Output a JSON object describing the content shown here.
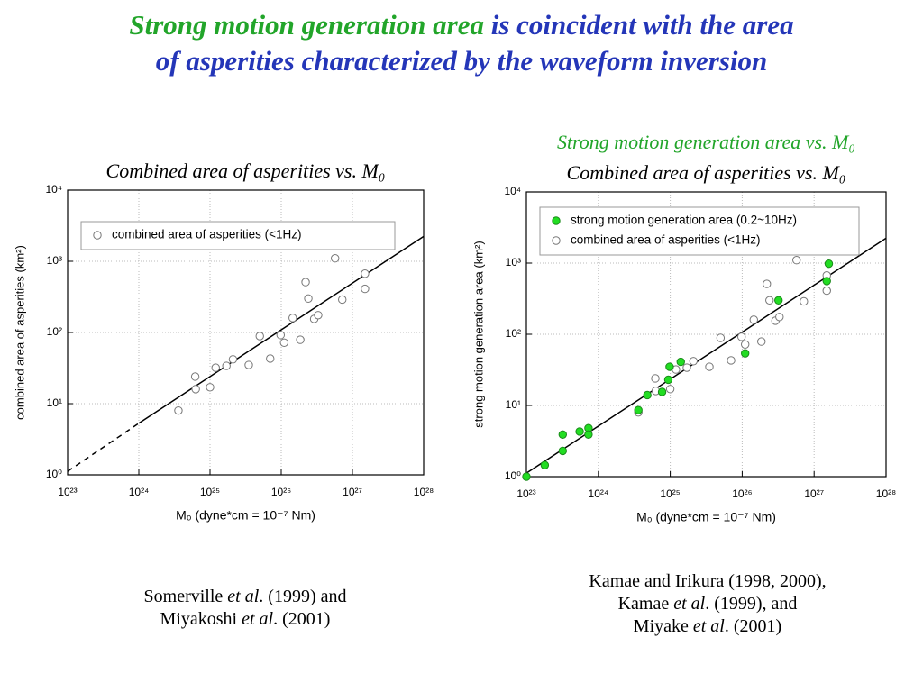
{
  "title": [
    {
      "text": "Strong motion generation area",
      "color": "#22a52a"
    },
    {
      "text": " is coincident with the area",
      "color": "#2436b8"
    },
    {
      "text": "of asperities characterized by the waveform inversion",
      "color": "#2436b8"
    }
  ],
  "captions": [
    [
      [
        {
          "text": "Somerville ",
          "italic": false
        },
        {
          "text": "et al",
          "italic": true
        },
        {
          "text": ". (1999) and",
          "italic": false
        }
      ],
      [
        {
          "text": "Miyakoshi ",
          "italic": false
        },
        {
          "text": "et al",
          "italic": true
        },
        {
          "text": ". (2001)",
          "italic": false
        }
      ]
    ],
    [
      [
        {
          "text": "Kamae and Irikura (1998, 2000),",
          "italic": false
        }
      ],
      [
        {
          "text": "Kamae ",
          "italic": false
        },
        {
          "text": "et al",
          "italic": true
        },
        {
          "text": ". (1999), and",
          "italic": false
        }
      ],
      [
        {
          "text": "Miyake ",
          "italic": false
        },
        {
          "text": "et al",
          "italic": true
        },
        {
          "text": ". (2001)",
          "italic": false
        }
      ]
    ]
  ],
  "chart_data": [
    {
      "type": "scatter",
      "titles": [
        {
          "text": "Combined area of asperities vs. M₀",
          "color": "#000000"
        }
      ],
      "x_label": "M₀ (dyne*cm = 10⁻⁷ Nm)",
      "y_label": "combined area of asperities (km²)",
      "log_x": true,
      "log_y": true,
      "grid": true,
      "xlim": [
        1e+23,
        1e+28
      ],
      "ylim": [
        1,
        10000
      ],
      "xticks": [
        {
          "value": 1e+23,
          "label": "10²³"
        },
        {
          "value": 1e+24,
          "label": "10²⁴"
        },
        {
          "value": 1e+25,
          "label": "10²⁵"
        },
        {
          "value": 1e+26,
          "label": "10²⁶"
        },
        {
          "value": 1e+27,
          "label": "10²⁷"
        },
        {
          "value": 1e+28,
          "label": "10²⁸"
        }
      ],
      "yticks": [
        {
          "value": 1,
          "label": "10⁰"
        },
        {
          "value": 10,
          "label": "10¹"
        },
        {
          "value": 100,
          "label": "10²"
        },
        {
          "value": 1000,
          "label": "10³"
        },
        {
          "value": 10000,
          "label": "10⁴"
        }
      ],
      "series": [
        {
          "name": "combined area of asperities (<1Hz)",
          "color": "#777777",
          "marker": "open",
          "x": [
            3.6e+24,
            6.2e+24,
            6.3e+24,
            1e+25,
            1.2e+25,
            1.7e+25,
            2.1e+25,
            3.5e+25,
            5e+25,
            7e+25,
            9.8e+25,
            1.1e+26,
            1.45e+26,
            1.85e+26,
            2.2e+26,
            2.4e+26,
            2.9e+26,
            3.3e+26,
            5.7e+26,
            7.2e+26,
            1.5e+27,
            1.5e+27
          ],
          "values": [
            8,
            24,
            16,
            17,
            32,
            34,
            42,
            35,
            89,
            43,
            92,
            72,
            160,
            79,
            510,
            300,
            155,
            175,
            1100,
            290,
            670,
            410
          ]
        }
      ],
      "lines": [
        {
          "x": [
            1e+23,
            1e+24
          ],
          "values": [
            1.12,
            5.3
          ],
          "style": "dashed"
        },
        {
          "x": [
            1e+24,
            1e+28
          ],
          "values": [
            5.3,
            2240
          ],
          "style": "solid"
        }
      ]
    },
    {
      "type": "scatter",
      "titles": [
        {
          "text": "Strong motion generation area vs. M₀",
          "color": "#22a52a"
        },
        {
          "text": "Combined area of asperities vs. M₀",
          "color": "#000000"
        }
      ],
      "x_label": "M₀ (dyne*cm = 10⁻⁷ Nm)",
      "y_label": "strong motion generation area (km²)",
      "log_x": true,
      "log_y": true,
      "grid": true,
      "xlim": [
        1e+23,
        1e+28
      ],
      "ylim": [
        1,
        10000
      ],
      "xticks": [
        {
          "value": 1e+23,
          "label": "10²³"
        },
        {
          "value": 1e+24,
          "label": "10²⁴"
        },
        {
          "value": 1e+25,
          "label": "10²⁵"
        },
        {
          "value": 1e+26,
          "label": "10²⁶"
        },
        {
          "value": 1e+27,
          "label": "10²⁷"
        },
        {
          "value": 1e+28,
          "label": "10²⁸"
        }
      ],
      "yticks": [
        {
          "value": 1,
          "label": "10⁰"
        },
        {
          "value": 10,
          "label": "10¹"
        },
        {
          "value": 100,
          "label": "10²"
        },
        {
          "value": 1000,
          "label": "10³"
        },
        {
          "value": 10000,
          "label": "10⁴"
        }
      ],
      "series": [
        {
          "name": "strong motion generation area (0.2~10Hz)",
          "color": "#22dd22",
          "marker": "filled",
          "x": [
            1e+23,
            1.8e+23,
            3.2e+23,
            3.2e+23,
            5.5e+23,
            7.3e+23,
            7.3e+23,
            3.6e+24,
            4.8e+24,
            7.7e+24,
            9.4e+24,
            9.8e+24,
            1.4e+25,
            1.1e+26,
            3.2e+26,
            1.6e+27,
            1.5e+27
          ],
          "values": [
            1,
            1.45,
            3.9,
            2.3,
            4.3,
            4.8,
            3.9,
            8.6,
            14,
            15.5,
            23,
            35,
            41,
            54,
            300,
            980,
            560
          ]
        },
        {
          "name": "combined area of asperities (<1Hz)",
          "color": "#777777",
          "marker": "open",
          "x": [
            3.6e+24,
            6.2e+24,
            6.3e+24,
            1e+25,
            1.2e+25,
            1.7e+25,
            2.1e+25,
            3.5e+25,
            5e+25,
            7e+25,
            9.8e+25,
            1.1e+26,
            1.45e+26,
            1.85e+26,
            2.2e+26,
            2.4e+26,
            2.9e+26,
            3.3e+26,
            5.7e+26,
            7.2e+26,
            1.5e+27,
            1.5e+27
          ],
          "values": [
            8,
            24,
            16,
            17,
            32,
            34,
            42,
            35,
            89,
            43,
            92,
            72,
            160,
            79,
            510,
            300,
            155,
            175,
            1100,
            290,
            670,
            410
          ]
        }
      ],
      "lines": [
        {
          "x": [
            1e+23,
            1e+28
          ],
          "values": [
            1.12,
            2240
          ],
          "style": "solid"
        }
      ]
    }
  ]
}
